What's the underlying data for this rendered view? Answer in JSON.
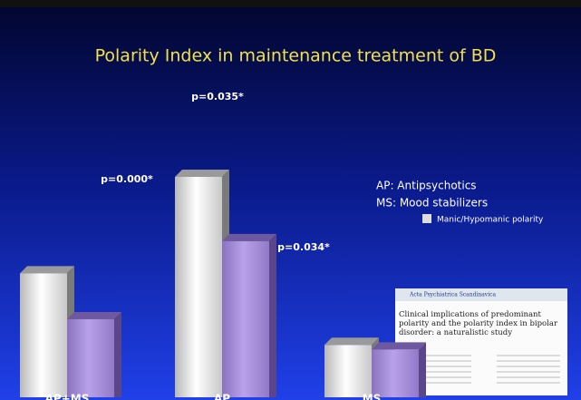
{
  "chart_data": {
    "type": "bar3d",
    "title": "Polarity Index in maintenance treatment of BD",
    "categories": [
      "AP+MS",
      "AP",
      "MS"
    ],
    "series": [
      {
        "name": "Manic/Hypomanic polarity",
        "color": "#e8e8e8",
        "values": [
          135,
          240,
          57
        ]
      },
      {
        "color": "#a88fd6",
        "values": [
          85,
          170,
          52
        ]
      }
    ],
    "annotations": [
      "p=0.000*",
      "p=0.035*",
      "p=0.034*"
    ],
    "notes": [
      "AP: Antipsychotics",
      "MS: Mood stabilizers"
    ],
    "inset": {
      "journal": "Acta Psychiatrica Scandinavica",
      "article_title": "Clinical implications of predominant polarity and the polarity index in bipolar disorder: a naturalistic study"
    }
  }
}
